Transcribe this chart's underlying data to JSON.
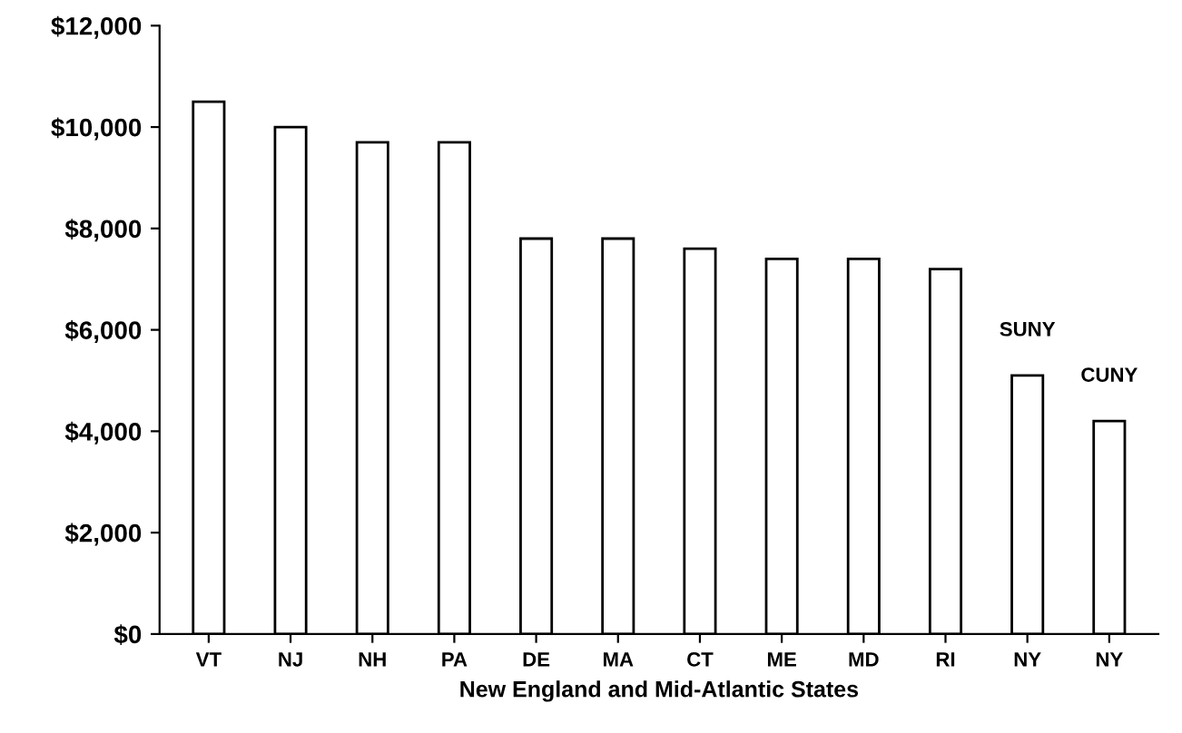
{
  "chart_data": {
    "type": "bar",
    "xlabel": "New England and Mid-Atlantic States",
    "categories": [
      "VT",
      "NJ",
      "NH",
      "PA",
      "DE",
      "MA",
      "CT",
      "ME",
      "MD",
      "RI",
      "NY",
      "NY"
    ],
    "values": [
      10500,
      10000,
      9700,
      9700,
      7800,
      7800,
      7600,
      7400,
      7400,
      7200,
      5100,
      4200
    ],
    "color": "#ffffff",
    "ylim": [
      0,
      12000
    ],
    "yticks": [
      {
        "value": 0,
        "label": "$0"
      },
      {
        "value": 2000,
        "label": "$2,000"
      },
      {
        "value": 4000,
        "label": "$4,000"
      },
      {
        "value": 6000,
        "label": "$6,000"
      },
      {
        "value": 8000,
        "label": "$8,000"
      },
      {
        "value": 10000,
        "label": "$10,000"
      },
      {
        "value": 12000,
        "label": "$12,000"
      }
    ],
    "value_labels": [
      null,
      null,
      null,
      null,
      null,
      null,
      null,
      null,
      null,
      null,
      "SUNY",
      "CUNY"
    ],
    "grid": false,
    "legend": false
  }
}
